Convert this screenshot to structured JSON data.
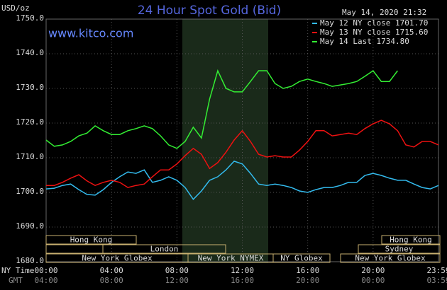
{
  "chart_data": {
    "type": "line",
    "title": "24 Hour Spot Gold (Bid)",
    "source": "www.kitco.com",
    "timestamp": "May 14, 2020 21:32",
    "ylabel": "USD/oz",
    "x_label_top": "NY Time",
    "x_label_bottom": "GMT",
    "grid": true,
    "legend": "upper right",
    "xlim": [
      0,
      24
    ],
    "ylim": [
      1680,
      1750
    ],
    "xticks": [
      {
        "value": 0,
        "label": "00:00"
      },
      {
        "value": 4,
        "label": "04:00"
      },
      {
        "value": 8,
        "label": "08:00"
      },
      {
        "value": 12,
        "label": "12:00"
      },
      {
        "value": 16,
        "label": "16:00"
      },
      {
        "value": 20,
        "label": "20:00"
      },
      {
        "value": 24,
        "label": "23:59"
      }
    ],
    "gmt_labels": [
      "04:00",
      "08:00",
      "12:00",
      "16:00",
      "20:00",
      "00:00",
      "03:59"
    ],
    "yticks": [
      {
        "value": 1680,
        "label": "1680.0"
      },
      {
        "value": 1690,
        "label": "1690.0"
      },
      {
        "value": 1700,
        "label": "1700.0"
      },
      {
        "value": 1710,
        "label": "1710.0"
      },
      {
        "value": 1720,
        "label": "1720.0"
      },
      {
        "value": 1730,
        "label": "1730.0"
      },
      {
        "value": 1740,
        "label": "1740.0"
      },
      {
        "value": 1750,
        "label": "1750.0"
      }
    ],
    "sessions": [
      "Hong Kong",
      "Hong Kong",
      "London",
      "Sydney",
      "New York Globex",
      "New York NYMEX",
      "NY Globex",
      "New York Globex"
    ],
    "x": [
      0,
      0.5,
      1,
      1.5,
      2,
      2.5,
      3,
      3.5,
      4,
      4.5,
      5,
      5.5,
      6,
      6.5,
      7,
      7.5,
      8,
      8.5,
      9,
      9.5,
      10,
      10.5,
      11,
      11.5,
      12,
      12.5,
      13,
      13.5,
      14,
      14.5,
      15,
      15.5,
      16,
      16.5,
      17,
      17.5,
      18,
      18.5,
      19,
      19.5,
      20,
      20.5,
      21,
      21.5,
      22,
      22.5,
      23,
      23.5,
      24
    ],
    "series": [
      {
        "name": "May 12 NY close 1701.70",
        "color": "#33bbee",
        "values": [
          1701.0,
          1701.2,
          1702.0,
          1702.4,
          1700.8,
          1699.4,
          1699.2,
          1700.8,
          1702.9,
          1704.5,
          1705.9,
          1705.5,
          1706.5,
          1702.9,
          1703.5,
          1704.5,
          1703.5,
          1701.4,
          1698.0,
          1700.4,
          1703.5,
          1704.5,
          1706.5,
          1709.0,
          1708.2,
          1705.5,
          1702.4,
          1702.0,
          1702.4,
          1702.0,
          1701.4,
          1700.4,
          1700.0,
          1700.8,
          1701.4,
          1701.4,
          1702.0,
          1702.9,
          1702.9,
          1704.9,
          1705.5,
          1704.9,
          1704.1,
          1703.5,
          1703.5,
          1702.4,
          1701.4,
          1701.0,
          1702.0
        ]
      },
      {
        "name": "May 13 NY close 1715.60",
        "color": "#ee1111",
        "values": [
          1702.0,
          1702.0,
          1702.9,
          1704.1,
          1705.1,
          1703.3,
          1702.0,
          1702.9,
          1703.5,
          1702.9,
          1701.4,
          1702.0,
          1702.4,
          1704.5,
          1706.5,
          1706.5,
          1708.2,
          1710.6,
          1712.7,
          1711.0,
          1706.9,
          1708.6,
          1711.6,
          1715.1,
          1717.8,
          1714.7,
          1711.0,
          1710.2,
          1710.6,
          1710.2,
          1710.2,
          1712.2,
          1714.7,
          1717.8,
          1717.8,
          1716.3,
          1716.7,
          1717.1,
          1716.7,
          1718.4,
          1719.8,
          1720.8,
          1719.8,
          1717.8,
          1713.7,
          1713.1,
          1714.7,
          1714.7,
          1713.7
        ]
      },
      {
        "name": "May 14 Last 1734.80",
        "color": "#33ee33",
        "values": [
          1715.1,
          1713.3,
          1713.7,
          1714.7,
          1716.3,
          1717.1,
          1719.2,
          1717.8,
          1716.7,
          1716.7,
          1717.8,
          1718.4,
          1719.2,
          1718.4,
          1716.3,
          1713.7,
          1712.7,
          1714.7,
          1718.8,
          1715.7,
          1726.9,
          1735.1,
          1730.0,
          1729.0,
          1729.0,
          1732.0,
          1735.1,
          1735.1,
          1731.4,
          1730.0,
          1730.6,
          1732.0,
          1732.7,
          1732.0,
          1731.4,
          1730.6,
          1731.0,
          1731.4,
          1732.0,
          1733.5,
          1735.1,
          1732.0,
          1732.0,
          1735.1,
          null,
          null,
          null,
          null,
          null
        ]
      }
    ]
  }
}
